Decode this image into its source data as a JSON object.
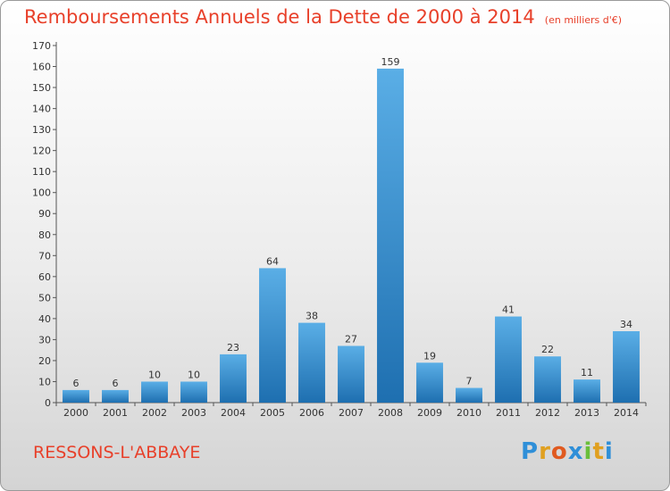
{
  "chart_data": {
    "type": "bar",
    "title": "Remboursements Annuels de la Dette de 2000 à 2014",
    "subtitle": "(en milliers d'€)",
    "categories": [
      "2000",
      "2001",
      "2002",
      "2003",
      "2004",
      "2005",
      "2006",
      "2007",
      "2008",
      "2009",
      "2010",
      "2011",
      "2012",
      "2013",
      "2014"
    ],
    "values": [
      6,
      6,
      10,
      10,
      23,
      64,
      38,
      27,
      159,
      19,
      7,
      41,
      22,
      11,
      34
    ],
    "ylim": [
      0,
      170
    ],
    "ytick_step": 10,
    "grid": false,
    "colors": {
      "bar_light": "#5aaee6",
      "bar_dark": "#1e6fb0",
      "axis": "#555555"
    }
  },
  "footer": {
    "commune": "RESSONS-L'ABBAYE",
    "logo_letters": [
      "P",
      "r",
      "o",
      "x",
      "i",
      "t",
      "i"
    ],
    "logo_colors": [
      "#2f8fd8",
      "#e0a020",
      "#e05a20",
      "#2f8fd8",
      "#6abf3a",
      "#e0a020",
      "#2f8fd8"
    ]
  }
}
